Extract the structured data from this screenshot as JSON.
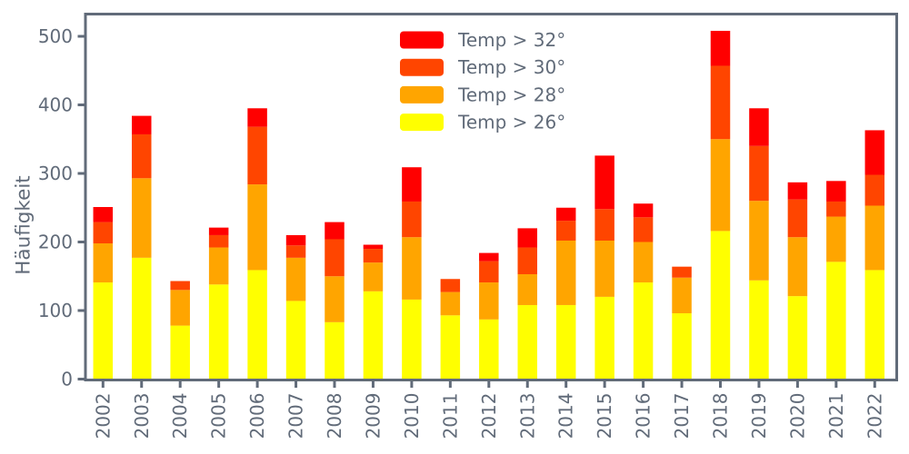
{
  "figure": {
    "background": "#ffffff",
    "axis_color": "#616b79",
    "ylabel": "Häufigkeit"
  },
  "chart_data": {
    "type": "bar",
    "stacked": true,
    "title": "",
    "xlabel": "",
    "ylabel": "Häufigkeit",
    "grid": false,
    "legend_position": "upper center",
    "ylim": [
      0,
      533
    ],
    "yticks": [
      0,
      100,
      200,
      300,
      400,
      500
    ],
    "categories": [
      "2002",
      "2003",
      "2004",
      "2005",
      "2006",
      "2007",
      "2008",
      "2009",
      "2010",
      "2011",
      "2012",
      "2013",
      "2014",
      "2015",
      "2016",
      "2017",
      "2018",
      "2019",
      "2020",
      "2021",
      "2022"
    ],
    "series": [
      {
        "name": "Temp > 26°",
        "color": "#ffff00",
        "values": [
          141,
          177,
          78,
          138,
          159,
          114,
          83,
          128,
          116,
          93,
          87,
          108,
          108,
          120,
          141,
          96,
          216,
          144,
          121,
          171,
          159
        ]
      },
      {
        "name": "Temp > 28°",
        "color": "#ffa500",
        "values": [
          57,
          116,
          52,
          54,
          125,
          63,
          67,
          42,
          91,
          34,
          54,
          45,
          94,
          82,
          59,
          52,
          134,
          116,
          86,
          66,
          94
        ]
      },
      {
        "name": "Temp > 30°",
        "color": "#ff4500",
        "values": [
          31,
          64,
          13,
          18,
          84,
          18,
          54,
          20,
          52,
          19,
          31,
          39,
          29,
          46,
          36,
          16,
          107,
          80,
          55,
          22,
          45
        ]
      },
      {
        "name": "Temp > 32°",
        "color": "#ff0000",
        "values": [
          22,
          27,
          0,
          11,
          27,
          15,
          25,
          6,
          50,
          0,
          12,
          28,
          19,
          78,
          20,
          0,
          51,
          55,
          25,
          30,
          65
        ]
      }
    ],
    "legend": {
      "entries": [
        {
          "label": "Temp > 32°",
          "color": "#ff0000"
        },
        {
          "label": "Temp > 30°",
          "color": "#ff4500"
        },
        {
          "label": "Temp > 28°",
          "color": "#ffa500"
        },
        {
          "label": "Temp > 26°",
          "color": "#ffff00"
        }
      ]
    }
  }
}
